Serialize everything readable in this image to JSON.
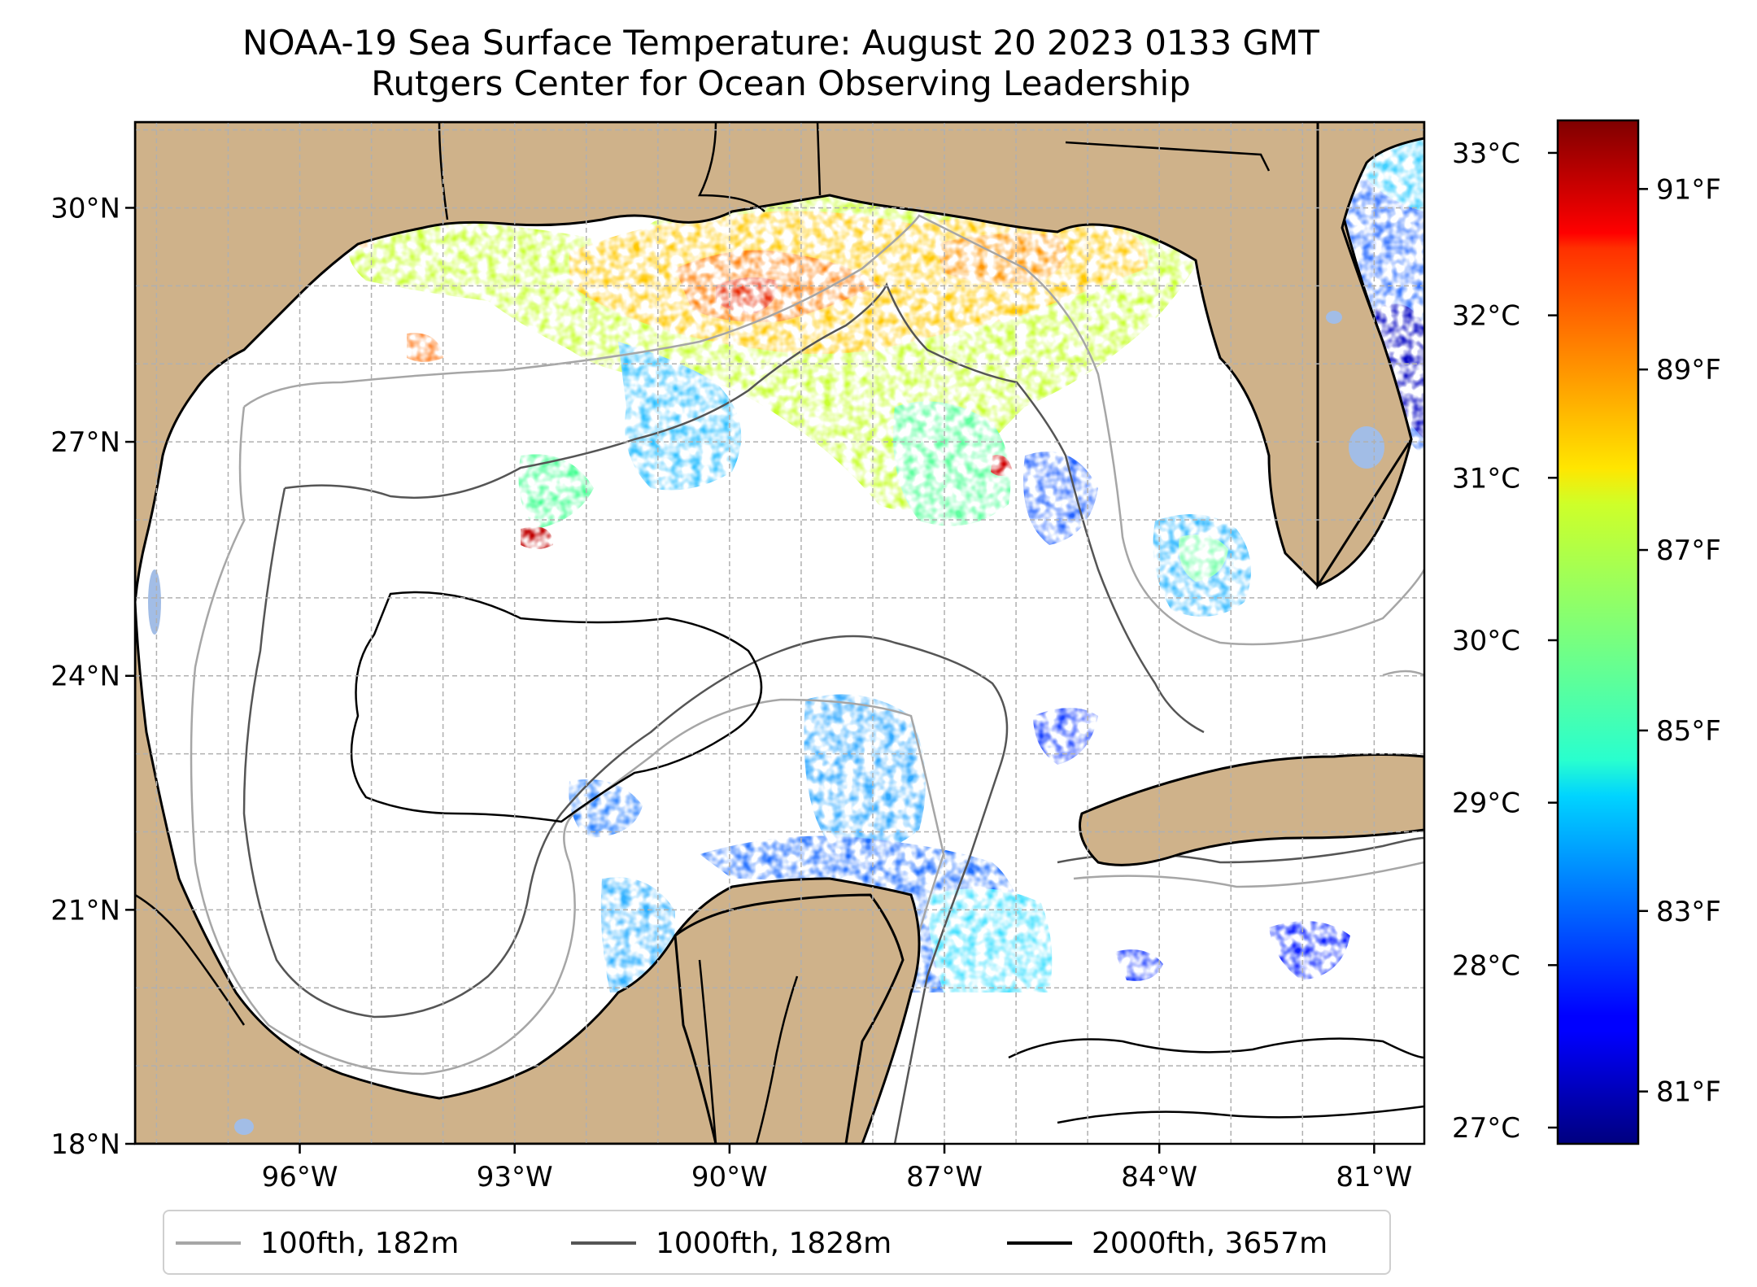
{
  "title": {
    "line1": "NOAA-19 Sea Surface Temperature: August 20 2023 0133 GMT",
    "line2": "Rutgers Center for Ocean Observing Leadership"
  },
  "map": {
    "latitude_ticks": [
      {
        "value": 30,
        "label": "30°N"
      },
      {
        "value": 27,
        "label": "27°N"
      },
      {
        "value": 24,
        "label": "24°N"
      },
      {
        "value": 21,
        "label": "21°N"
      },
      {
        "value": 18,
        "label": "18°N"
      }
    ],
    "longitude_ticks": [
      {
        "value": -96,
        "label": "96°W"
      },
      {
        "value": -93,
        "label": "93°W"
      },
      {
        "value": -90,
        "label": "90°W"
      },
      {
        "value": -87,
        "label": "87°W"
      },
      {
        "value": -84,
        "label": "84°W"
      },
      {
        "value": -81,
        "label": "81°W"
      }
    ],
    "lon_range": [
      -98.3,
      -80.3
    ],
    "lat_range": [
      18,
      31.1
    ],
    "gridlines": true,
    "colors": {
      "land": "#cfb28a",
      "lakes": "#a2bde6",
      "coast": "#000000",
      "ocean_no_data": "#ffffff",
      "gridline": "#b0b0b0"
    }
  },
  "colorbar": {
    "colormap": "jet",
    "celsius_range": [
      26.9,
      33.2
    ],
    "celsius_ticks": [
      {
        "value": 33,
        "label": "33°C"
      },
      {
        "value": 32,
        "label": "32°C"
      },
      {
        "value": 31,
        "label": "31°C"
      },
      {
        "value": 30,
        "label": "30°C"
      },
      {
        "value": 29,
        "label": "29°C"
      },
      {
        "value": 28,
        "label": "28°C"
      },
      {
        "value": 27,
        "label": "27°C"
      }
    ],
    "fahrenheit_ticks": [
      {
        "value": 91,
        "label": "91°F"
      },
      {
        "value": 89,
        "label": "89°F"
      },
      {
        "value": 87,
        "label": "87°F"
      },
      {
        "value": 85,
        "label": "85°F"
      },
      {
        "value": 83,
        "label": "83°F"
      },
      {
        "value": 81,
        "label": "81°F"
      }
    ]
  },
  "legend": {
    "placement": "bottom-center",
    "items": [
      {
        "label": "100fth, 182m",
        "color": "#a6a6a6"
      },
      {
        "label": "1000fth, 1828m",
        "color": "#555555"
      },
      {
        "label": "2000fth, 3657m",
        "color": "#000000"
      }
    ]
  }
}
